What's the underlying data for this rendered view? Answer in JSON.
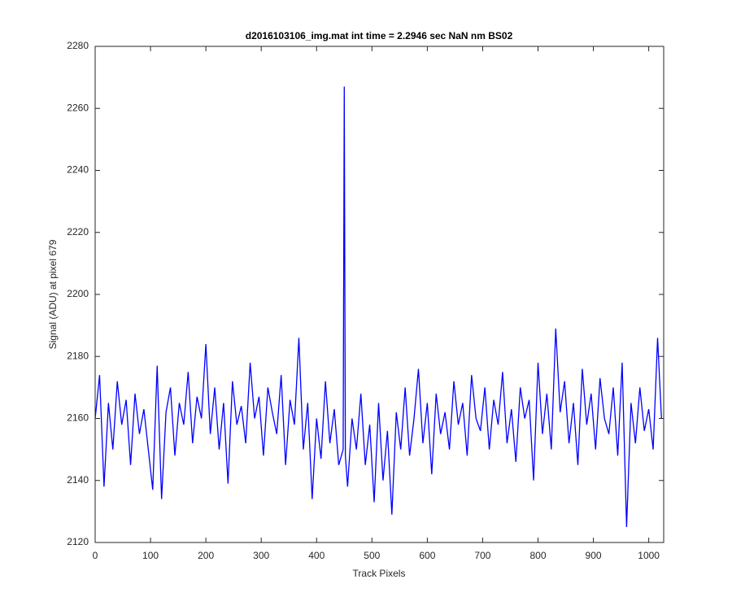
{
  "chart_data": {
    "type": "line",
    "title": "d2016103106_img.mat int time = 2.2946 sec  NaN nm BS02",
    "x_label": "Track Pixels",
    "y_label": "Signal (ADU) at pixel 679",
    "x": [
      0,
      8,
      16,
      24,
      32,
      40,
      48,
      56,
      64,
      72,
      80,
      88,
      96,
      104,
      112,
      120,
      128,
      136,
      144,
      152,
      160,
      168,
      176,
      184,
      192,
      200,
      208,
      216,
      224,
      232,
      240,
      248,
      256,
      264,
      272,
      280,
      288,
      296,
      304,
      312,
      320,
      328,
      336,
      344,
      352,
      360,
      368,
      376,
      384,
      392,
      400,
      408,
      416,
      424,
      432,
      440,
      448,
      450,
      452,
      456,
      464,
      472,
      480,
      488,
      496,
      504,
      512,
      520,
      528,
      536,
      544,
      552,
      560,
      568,
      576,
      584,
      592,
      600,
      608,
      616,
      624,
      632,
      640,
      648,
      656,
      664,
      672,
      680,
      688,
      696,
      704,
      712,
      720,
      728,
      736,
      744,
      752,
      760,
      768,
      776,
      784,
      792,
      800,
      808,
      816,
      824,
      832,
      840,
      848,
      856,
      864,
      872,
      880,
      888,
      896,
      904,
      912,
      920,
      928,
      936,
      944,
      952,
      960,
      968,
      976,
      984,
      992,
      1000,
      1008,
      1016,
      1023
    ],
    "series": [
      {
        "name": "signal",
        "color": "#0000ff",
        "values": [
          2160,
          2174,
          2138,
          2165,
          2150,
          2172,
          2158,
          2166,
          2145,
          2168,
          2155,
          2163,
          2150,
          2137,
          2177,
          2134,
          2162,
          2170,
          2148,
          2165,
          2158,
          2175,
          2152,
          2167,
          2160,
          2184,
          2155,
          2170,
          2150,
          2165,
          2139,
          2172,
          2158,
          2164,
          2152,
          2178,
          2160,
          2167,
          2148,
          2170,
          2162,
          2155,
          2174,
          2145,
          2166,
          2158,
          2186,
          2150,
          2165,
          2134,
          2160,
          2147,
          2172,
          2152,
          2163,
          2145,
          2150,
          2267,
          2148,
          2138,
          2160,
          2150,
          2168,
          2145,
          2158,
          2133,
          2165,
          2140,
          2156,
          2129,
          2162,
          2150,
          2170,
          2148,
          2160,
          2176,
          2152,
          2165,
          2142,
          2168,
          2155,
          2162,
          2150,
          2172,
          2158,
          2165,
          2148,
          2174,
          2160,
          2156,
          2170,
          2150,
          2166,
          2158,
          2175,
          2152,
          2163,
          2146,
          2170,
          2160,
          2166,
          2140,
          2178,
          2155,
          2168,
          2150,
          2189,
          2162,
          2172,
          2152,
          2165,
          2145,
          2176,
          2158,
          2168,
          2150,
          2173,
          2160,
          2155,
          2170,
          2148,
          2178,
          2125,
          2165,
          2152,
          2170,
          2156,
          2163,
          2150,
          2186,
          2160
        ]
      }
    ],
    "xlim": [
      0,
      1027
    ],
    "ylim": [
      2120,
      2280
    ],
    "xticks": [
      0,
      100,
      200,
      300,
      400,
      500,
      600,
      700,
      800,
      900,
      1000
    ],
    "yticks": [
      2120,
      2140,
      2160,
      2180,
      2200,
      2220,
      2240,
      2260,
      2280
    ]
  }
}
